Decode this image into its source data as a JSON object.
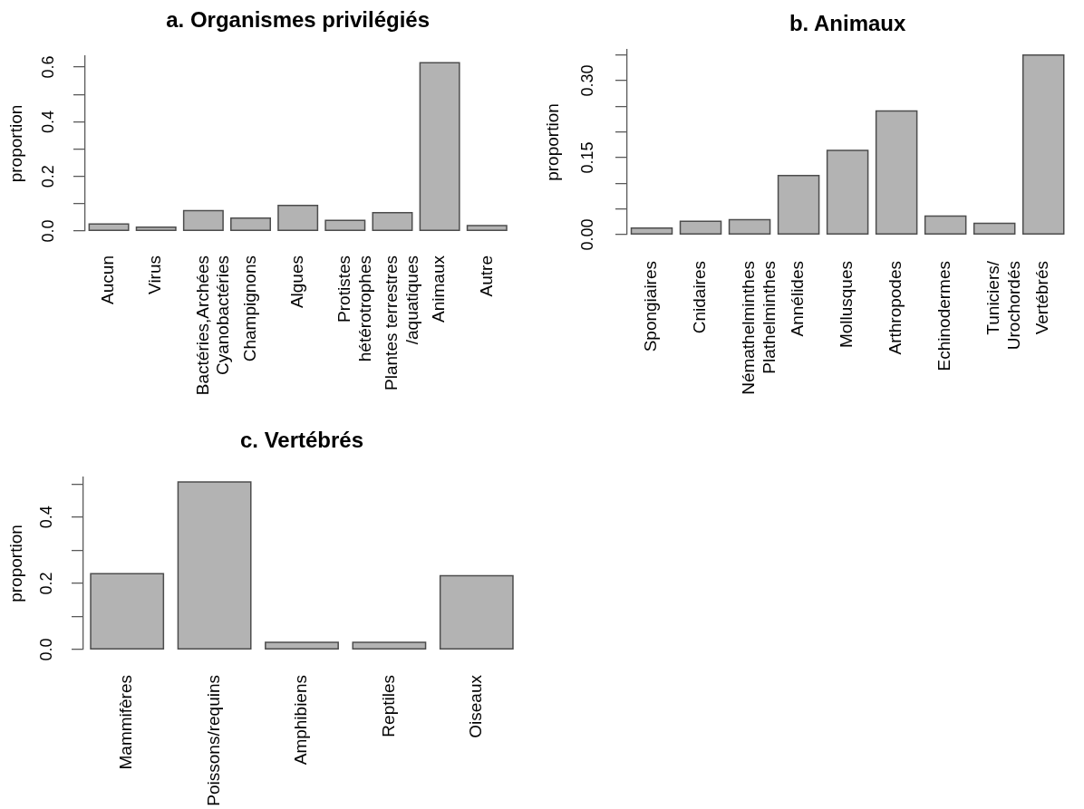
{
  "chart_data": [
    {
      "type": "bar",
      "title": "a. Organismes privilégiés",
      "ylabel": "proportion",
      "categories": [
        "Aucun",
        "Virus",
        "Bactéries,Archées\nCyanobactéries",
        "Champignons",
        "Algues",
        "Protistes\nhétérotrophes",
        "Plantes terrestres\n/aquatiques",
        "Animaux",
        "Autre"
      ],
      "values": [
        0.026,
        0.014,
        0.075,
        0.047,
        0.094,
        0.039,
        0.067,
        0.616,
        0.02
      ],
      "color": "#b3b3b3",
      "ylim": [
        0,
        0.64
      ],
      "yticks": [
        {
          "value": 0,
          "label": "0.0"
        },
        {
          "value": 0.1,
          "label": null
        },
        0.2,
        {
          "value": 0.3,
          "label": null
        },
        0.4,
        {
          "value": 0.5,
          "label": null
        },
        0.6
      ]
    },
    {
      "type": "bar",
      "title": "b. Animaux",
      "ylabel": "proportion",
      "categories": [
        "Spongiaires",
        "Cnidaires",
        "Némathelminthes\nPlathelminthes",
        "Annélides",
        "Mollusques",
        "Arthropodes",
        "Echinodermes",
        "Tuniciers/\nUrochordés",
        "Vertébrés"
      ],
      "values": [
        0.013,
        0.026,
        0.029,
        0.115,
        0.164,
        0.241,
        0.036,
        0.022,
        0.35
      ],
      "color": "#b3b3b3",
      "ylim": [
        0,
        0.36
      ],
      "yticks": [
        {
          "value": 0,
          "label": "0.00"
        },
        {
          "value": 0.05,
          "label": null
        },
        {
          "value": 0.1,
          "label": null
        },
        0.15,
        {
          "value": 0.2,
          "label": null
        },
        {
          "value": 0.25,
          "label": null
        },
        {
          "value": 0.3,
          "label": "0.30"
        },
        {
          "value": 0.35,
          "label": null
        }
      ]
    },
    {
      "type": "bar",
      "title": "c. Vertébrés",
      "ylabel": "proportion",
      "categories": [
        "Mammifères",
        "Poissons/requins",
        "Amphibiens",
        "Reptiles",
        "Oiseaux"
      ],
      "values": [
        0.229,
        0.506,
        0.022,
        0.022,
        0.223
      ],
      "color": "#b3b3b3",
      "ylim": [
        0,
        0.52
      ],
      "yticks": [
        {
          "value": 0,
          "label": "0.0"
        },
        {
          "value": 0.1,
          "label": null
        },
        0.2,
        {
          "value": 0.3,
          "label": null
        },
        0.4,
        {
          "value": 0.5,
          "label": null
        }
      ]
    }
  ]
}
